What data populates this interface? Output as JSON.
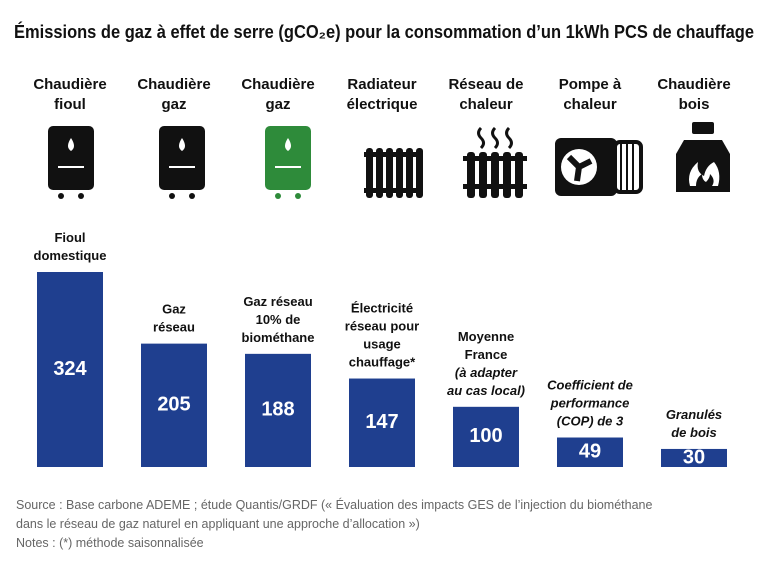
{
  "chart_data": {
    "type": "bar",
    "title": "Émissions de gaz à effet de serre (gCO₂e) pour la consommation d’un 1kWh PCS de chauffage",
    "categories": [
      [
        "Chaudière",
        "fioul"
      ],
      [
        "Chaudière",
        "gaz"
      ],
      [
        "Chaudière",
        "gaz"
      ],
      [
        "Radiateur",
        "électrique"
      ],
      [
        "Réseau de",
        "chaleur"
      ],
      [
        "Pompe à",
        "chaleur"
      ],
      [
        "Chaudière",
        "bois"
      ]
    ],
    "bar_labels": [
      [
        "Fioul",
        "domestique"
      ],
      [
        "Gaz",
        "réseau"
      ],
      [
        "Gaz réseau",
        "10% de",
        "biométhane"
      ],
      [
        "Électricité",
        "réseau pour",
        "usage",
        "chauffage*"
      ],
      [
        "Moyenne",
        "France",
        "(à adapter",
        "au cas local)"
      ],
      [
        "Coefficient de",
        "performance",
        "(COP) de 3"
      ],
      [
        "Granulés",
        "de bois"
      ]
    ],
    "values": [
      324,
      205,
      188,
      147,
      100,
      49,
      30
    ],
    "color": "#1f3f8f",
    "source": "Source : Base carbone ADEME ; étude Quantis/GRDF (« Évaluation des impacts GES de l’injection du biométhane dans le réseau de gaz naturel en appliquant une approche d’allocation »)",
    "notes": "Notes : (*) méthode saisonnalisée"
  }
}
